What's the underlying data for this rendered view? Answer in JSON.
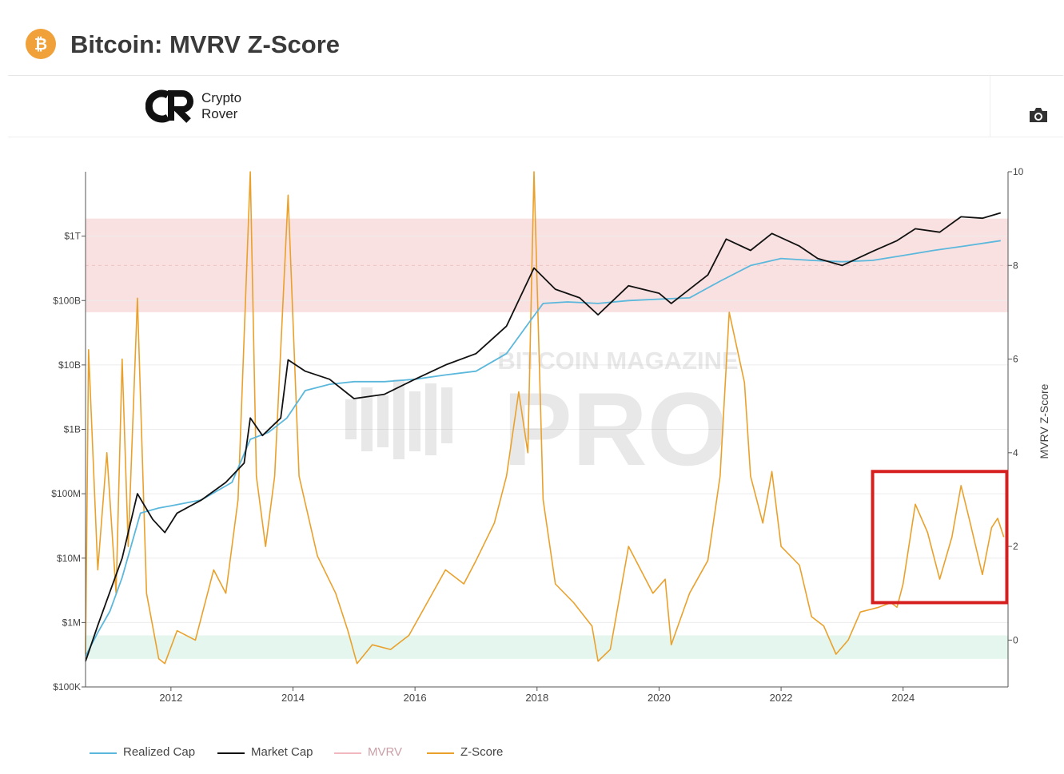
{
  "header": {
    "icon": "bitcoin-icon",
    "icon_glyph": "₿",
    "title": "Bitcoin: MVRV Z-Score"
  },
  "brand": {
    "logo_icon": "crypto-rover-logo",
    "line1": "Crypto",
    "line2": "Rover"
  },
  "toolbar": {
    "camera_icon": "camera-icon"
  },
  "watermark": {
    "line1": "BITCOIN MAGAZINE",
    "line2": "PRO"
  },
  "colors": {
    "realized_cap": "#5bb8dc",
    "market_cap": "#111111",
    "mvrv": "#f2b8c0",
    "z_score": "#eaa12c",
    "red_zone": "#f9dcdc",
    "green_zone": "#dff4ea",
    "highlight_box": "#d62020"
  },
  "chart_data": {
    "type": "line",
    "x_ticks": [
      "2012",
      "2014",
      "2016",
      "2018",
      "2020",
      "2022",
      "2024"
    ],
    "y_left": {
      "scale": "log",
      "ticks": [
        "$100K",
        "$1M",
        "$10M",
        "$100M",
        "$1B",
        "$10B",
        "$100B",
        "$1T"
      ],
      "range": [
        100000,
        10000000000000
      ]
    },
    "y_right": {
      "label": "MVRV Z-Score",
      "ticks": [
        "0",
        "2",
        "4",
        "6",
        "8",
        "10"
      ],
      "range": [
        -1,
        10
      ]
    },
    "zones": [
      {
        "name": "red-zone",
        "axis": "right",
        "from": 7,
        "to": 9
      },
      {
        "name": "green-zone",
        "axis": "right",
        "from": -0.4,
        "to": 0.1
      }
    ],
    "highlight_box": {
      "x_from": 2023.5,
      "x_to": 2025.7,
      "y_from": 0.8,
      "y_to": 3.6
    },
    "series": [
      {
        "name": "Realized Cap",
        "axis": "left",
        "points": [
          [
            2010.6,
            300000
          ],
          [
            2010.8,
            700000
          ],
          [
            2011.0,
            1500000
          ],
          [
            2011.2,
            5000000
          ],
          [
            2011.5,
            50000000
          ],
          [
            2011.8,
            60000000
          ],
          [
            2012.0,
            65000000
          ],
          [
            2012.5,
            80000000
          ],
          [
            2013.0,
            150000000
          ],
          [
            2013.3,
            700000000
          ],
          [
            2013.6,
            900000000
          ],
          [
            2013.9,
            1500000000
          ],
          [
            2014.2,
            4000000000
          ],
          [
            2014.6,
            5000000000
          ],
          [
            2015.0,
            5500000000
          ],
          [
            2015.5,
            5500000000
          ],
          [
            2016.0,
            6000000000
          ],
          [
            2016.5,
            7000000000
          ],
          [
            2017.0,
            8000000000
          ],
          [
            2017.5,
            15000000000
          ],
          [
            2017.9,
            50000000000
          ],
          [
            2018.1,
            90000000000
          ],
          [
            2018.5,
            95000000000
          ],
          [
            2019.0,
            90000000000
          ],
          [
            2019.5,
            100000000000
          ],
          [
            2020.0,
            105000000000
          ],
          [
            2020.5,
            110000000000
          ],
          [
            2021.0,
            200000000000
          ],
          [
            2021.5,
            350000000000
          ],
          [
            2022.0,
            450000000000
          ],
          [
            2022.5,
            420000000000
          ],
          [
            2023.0,
            400000000000
          ],
          [
            2023.5,
            420000000000
          ],
          [
            2024.0,
            500000000000
          ],
          [
            2024.5,
            600000000000
          ],
          [
            2025.0,
            700000000000
          ],
          [
            2025.6,
            850000000000
          ]
        ]
      },
      {
        "name": "Market Cap",
        "axis": "left",
        "points": [
          [
            2010.6,
            250000
          ],
          [
            2010.8,
            900000
          ],
          [
            2011.0,
            3000000
          ],
          [
            2011.2,
            10000000
          ],
          [
            2011.45,
            100000000
          ],
          [
            2011.7,
            40000000
          ],
          [
            2011.9,
            25000000
          ],
          [
            2012.1,
            50000000
          ],
          [
            2012.5,
            80000000
          ],
          [
            2012.9,
            150000000
          ],
          [
            2013.2,
            300000000
          ],
          [
            2013.3,
            1500000000
          ],
          [
            2013.5,
            800000000
          ],
          [
            2013.8,
            1500000000
          ],
          [
            2013.92,
            12000000000
          ],
          [
            2014.2,
            8000000000
          ],
          [
            2014.6,
            6000000000
          ],
          [
            2015.0,
            3000000000
          ],
          [
            2015.5,
            3500000000
          ],
          [
            2016.0,
            6000000000
          ],
          [
            2016.5,
            10000000000
          ],
          [
            2017.0,
            15000000000
          ],
          [
            2017.5,
            40000000000
          ],
          [
            2017.95,
            320000000000
          ],
          [
            2018.3,
            150000000000
          ],
          [
            2018.7,
            110000000000
          ],
          [
            2019.0,
            60000000000
          ],
          [
            2019.5,
            170000000000
          ],
          [
            2020.0,
            130000000000
          ],
          [
            2020.2,
            90000000000
          ],
          [
            2020.8,
            250000000000
          ],
          [
            2021.1,
            900000000000
          ],
          [
            2021.5,
            600000000000
          ],
          [
            2021.85,
            1100000000000
          ],
          [
            2022.3,
            700000000000
          ],
          [
            2022.6,
            450000000000
          ],
          [
            2023.0,
            350000000000
          ],
          [
            2023.5,
            580000000000
          ],
          [
            2023.9,
            850000000000
          ],
          [
            2024.2,
            1300000000000
          ],
          [
            2024.6,
            1150000000000
          ],
          [
            2024.95,
            2000000000000
          ],
          [
            2025.3,
            1900000000000
          ],
          [
            2025.6,
            2300000000000
          ]
        ]
      },
      {
        "name": "MVRV",
        "axis": "left",
        "points": []
      },
      {
        "name": "Z-Score",
        "axis": "right",
        "points": [
          [
            2010.6,
            -0.3
          ],
          [
            2010.65,
            6.2
          ],
          [
            2010.8,
            1.5
          ],
          [
            2010.95,
            4.0
          ],
          [
            2011.1,
            1.0
          ],
          [
            2011.2,
            6.0
          ],
          [
            2011.3,
            2.0
          ],
          [
            2011.45,
            7.3
          ],
          [
            2011.6,
            1.0
          ],
          [
            2011.8,
            -0.4
          ],
          [
            2011.9,
            -0.5
          ],
          [
            2012.1,
            0.2
          ],
          [
            2012.4,
            0.0
          ],
          [
            2012.7,
            1.5
          ],
          [
            2012.9,
            1.0
          ],
          [
            2013.1,
            3.0
          ],
          [
            2013.3,
            10.0
          ],
          [
            2013.4,
            3.5
          ],
          [
            2013.55,
            2.0
          ],
          [
            2013.7,
            3.5
          ],
          [
            2013.92,
            9.5
          ],
          [
            2014.1,
            3.5
          ],
          [
            2014.4,
            1.8
          ],
          [
            2014.7,
            1.0
          ],
          [
            2014.9,
            0.2
          ],
          [
            2015.05,
            -0.5
          ],
          [
            2015.3,
            -0.1
          ],
          [
            2015.6,
            -0.2
          ],
          [
            2015.9,
            0.1
          ],
          [
            2016.2,
            0.8
          ],
          [
            2016.5,
            1.5
          ],
          [
            2016.8,
            1.2
          ],
          [
            2017.0,
            1.7
          ],
          [
            2017.3,
            2.5
          ],
          [
            2017.5,
            3.5
          ],
          [
            2017.7,
            5.3
          ],
          [
            2017.85,
            4.0
          ],
          [
            2017.95,
            10.0
          ],
          [
            2018.1,
            3.0
          ],
          [
            2018.3,
            1.2
          ],
          [
            2018.6,
            0.8
          ],
          [
            2018.9,
            0.3
          ],
          [
            2019.0,
            -0.45
          ],
          [
            2019.2,
            -0.2
          ],
          [
            2019.5,
            2.0
          ],
          [
            2019.7,
            1.5
          ],
          [
            2019.9,
            1.0
          ],
          [
            2020.1,
            1.3
          ],
          [
            2020.2,
            -0.1
          ],
          [
            2020.5,
            1.0
          ],
          [
            2020.8,
            1.7
          ],
          [
            2021.0,
            3.5
          ],
          [
            2021.15,
            7.0
          ],
          [
            2021.4,
            5.5
          ],
          [
            2021.5,
            3.5
          ],
          [
            2021.7,
            2.5
          ],
          [
            2021.85,
            3.6
          ],
          [
            2022.0,
            2.0
          ],
          [
            2022.3,
            1.6
          ],
          [
            2022.5,
            0.5
          ],
          [
            2022.7,
            0.3
          ],
          [
            2022.9,
            -0.3
          ],
          [
            2023.1,
            0.0
          ],
          [
            2023.3,
            0.6
          ],
          [
            2023.6,
            0.7
          ],
          [
            2023.8,
            0.8
          ],
          [
            2023.9,
            0.7
          ],
          [
            2024.0,
            1.2
          ],
          [
            2024.2,
            2.9
          ],
          [
            2024.4,
            2.3
          ],
          [
            2024.6,
            1.3
          ],
          [
            2024.8,
            2.2
          ],
          [
            2024.95,
            3.3
          ],
          [
            2025.1,
            2.5
          ],
          [
            2025.3,
            1.4
          ],
          [
            2025.45,
            2.4
          ],
          [
            2025.55,
            2.6
          ],
          [
            2025.65,
            2.2
          ]
        ]
      }
    ],
    "legend": [
      "Realized Cap",
      "Market Cap",
      "MVRV",
      "Z-Score"
    ],
    "legend_position": "bottom-left",
    "grid": true
  }
}
